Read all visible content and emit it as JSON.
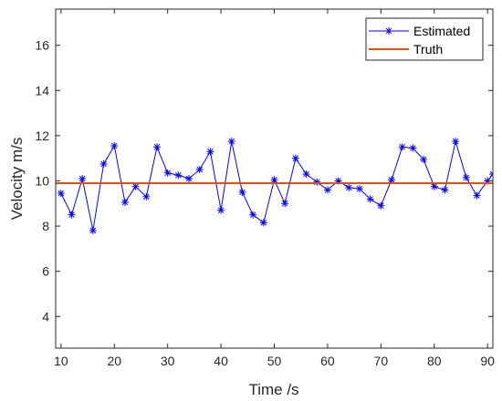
{
  "chart_data": {
    "type": "line",
    "title": "",
    "xlabel": "Time /s",
    "ylabel": "Velocity m/s",
    "xlim": [
      9,
      91
    ],
    "ylim": [
      2.6,
      17.6
    ],
    "xticks": [
      10,
      20,
      30,
      40,
      50,
      60,
      70,
      80,
      90
    ],
    "yticks": [
      4,
      6,
      8,
      10,
      12,
      14,
      16
    ],
    "grid": false,
    "legend_position": "top-right",
    "series": [
      {
        "name": "Estimated",
        "color": "#0000ff",
        "marker": "asterisk",
        "x": [
          10,
          12,
          14,
          16,
          18,
          20,
          22,
          24,
          26,
          28,
          30,
          32,
          34,
          36,
          38,
          40,
          42,
          44,
          46,
          48,
          50,
          52,
          54,
          56,
          58,
          60,
          62,
          64,
          66,
          68,
          70,
          72,
          74,
          76,
          78,
          80,
          82,
          84,
          86,
          88,
          90,
          91
        ],
        "y": [
          9.45,
          8.5,
          10.1,
          7.8,
          10.75,
          11.55,
          9.05,
          9.75,
          9.3,
          11.5,
          10.35,
          10.25,
          10.1,
          10.5,
          11.3,
          8.7,
          11.75,
          9.5,
          8.5,
          8.15,
          10.05,
          9.0,
          11.0,
          10.3,
          9.95,
          9.6,
          10.0,
          9.7,
          9.65,
          9.2,
          8.9,
          10.05,
          11.5,
          11.45,
          10.95,
          9.75,
          9.6,
          11.75,
          10.15,
          9.35,
          10.0,
          10.3
        ]
      },
      {
        "name": "Truth",
        "color": "#d95319",
        "marker": "none",
        "x": [
          9,
          91
        ],
        "y": [
          9.9,
          9.9
        ]
      }
    ]
  }
}
